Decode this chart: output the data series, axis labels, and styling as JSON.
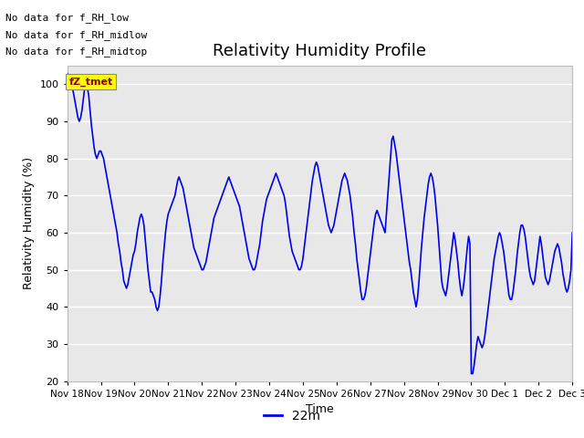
{
  "title": "Relativity Humidity Profile",
  "xlabel": "Time",
  "ylabel": "Relativity Humidity (%)",
  "ylim": [
    20,
    105
  ],
  "yticks": [
    20,
    30,
    40,
    50,
    60,
    70,
    80,
    90,
    100
  ],
  "plot_bg_color": "#e8e8e8",
  "line_color": "#0000ee",
  "legend_label": "22m",
  "no_data_texts": [
    "No data for f_RH_low",
    "No data for f_RH_midlow",
    "No data for f_RH_midtop"
  ],
  "tz_tmet_label": "fZ_tmet",
  "x_tick_labels": [
    "Nov 18",
    "Nov 19",
    "Nov 20",
    "Nov 21",
    "Nov 22",
    "Nov 23",
    "Nov 24",
    "Nov 25",
    "Nov 26",
    "Nov 27",
    "Nov 28",
    "Nov 29",
    "Nov 30",
    "Dec 1",
    "Dec 2",
    "Dec 3"
  ],
  "x_tick_positions": [
    0,
    1,
    2,
    3,
    4,
    5,
    6,
    7,
    8,
    9,
    10,
    11,
    12,
    13,
    14,
    15
  ],
  "data_x": [
    0.0,
    0.04,
    0.08,
    0.12,
    0.16,
    0.2,
    0.24,
    0.28,
    0.32,
    0.36,
    0.4,
    0.44,
    0.48,
    0.52,
    0.56,
    0.6,
    0.64,
    0.68,
    0.72,
    0.76,
    0.8,
    0.84,
    0.88,
    0.92,
    0.96,
    1.0,
    1.04,
    1.08,
    1.12,
    1.16,
    1.2,
    1.24,
    1.28,
    1.32,
    1.36,
    1.4,
    1.44,
    1.48,
    1.52,
    1.56,
    1.6,
    1.64,
    1.68,
    1.72,
    1.76,
    1.8,
    1.84,
    1.88,
    1.92,
    1.96,
    2.0,
    2.04,
    2.08,
    2.12,
    2.16,
    2.2,
    2.24,
    2.28,
    2.32,
    2.36,
    2.4,
    2.44,
    2.48,
    2.52,
    2.56,
    2.6,
    2.64,
    2.68,
    2.72,
    2.76,
    2.8,
    2.84,
    2.88,
    2.92,
    2.96,
    3.0,
    3.04,
    3.08,
    3.12,
    3.16,
    3.2,
    3.24,
    3.28,
    3.32,
    3.36,
    3.4,
    3.44,
    3.48,
    3.52,
    3.56,
    3.6,
    3.64,
    3.68,
    3.72,
    3.76,
    3.8,
    3.84,
    3.88,
    3.92,
    3.96,
    4.0,
    4.04,
    4.08,
    4.12,
    4.16,
    4.2,
    4.24,
    4.28,
    4.32,
    4.36,
    4.4,
    4.44,
    4.48,
    4.52,
    4.56,
    4.6,
    4.64,
    4.68,
    4.72,
    4.76,
    4.8,
    4.84,
    4.88,
    4.92,
    4.96,
    5.0,
    5.04,
    5.08,
    5.12,
    5.16,
    5.2,
    5.24,
    5.28,
    5.32,
    5.36,
    5.4,
    5.44,
    5.48,
    5.52,
    5.56,
    5.6,
    5.64,
    5.68,
    5.72,
    5.76,
    5.8,
    5.84,
    5.88,
    5.92,
    5.96,
    6.0,
    6.04,
    6.08,
    6.12,
    6.16,
    6.2,
    6.24,
    6.28,
    6.32,
    6.36,
    6.4,
    6.44,
    6.48,
    6.52,
    6.56,
    6.6,
    6.64,
    6.68,
    6.72,
    6.76,
    6.8,
    6.84,
    6.88,
    6.92,
    6.96,
    7.0,
    7.04,
    7.08,
    7.12,
    7.16,
    7.2,
    7.24,
    7.28,
    7.32,
    7.36,
    7.4,
    7.44,
    7.48,
    7.52,
    7.56,
    7.6,
    7.64,
    7.68,
    7.72,
    7.76,
    7.8,
    7.84,
    7.88,
    7.92,
    7.96,
    8.0,
    8.04,
    8.08,
    8.12,
    8.16,
    8.2,
    8.24,
    8.28,
    8.32,
    8.36,
    8.4,
    8.44,
    8.48,
    8.52,
    8.56,
    8.6,
    8.64,
    8.68,
    8.72,
    8.76,
    8.8,
    8.84,
    8.88,
    8.92,
    8.96,
    9.0,
    9.04,
    9.08,
    9.12,
    9.16,
    9.2,
    9.24,
    9.28,
    9.32,
    9.36,
    9.4,
    9.44,
    9.48,
    9.52,
    9.56,
    9.6,
    9.64,
    9.68,
    9.72,
    9.76,
    9.8,
    9.84,
    9.88,
    9.92,
    9.96,
    10.0,
    10.04,
    10.08,
    10.12,
    10.16,
    10.2,
    10.24,
    10.28,
    10.32,
    10.36,
    10.4,
    10.44,
    10.48,
    10.52,
    10.56,
    10.6,
    10.64,
    10.68,
    10.72,
    10.76,
    10.8,
    10.84,
    10.88,
    10.92,
    10.96,
    11.0,
    11.04,
    11.08,
    11.12,
    11.16,
    11.2,
    11.24,
    11.28,
    11.32,
    11.36,
    11.4,
    11.44,
    11.48,
    11.52,
    11.56,
    11.6,
    11.64,
    11.68,
    11.72,
    11.76,
    11.8,
    11.84,
    11.88,
    11.92,
    11.96,
    12.0,
    12.04,
    12.08,
    12.12,
    12.16,
    12.2,
    12.24,
    12.28,
    12.32,
    12.36,
    12.4,
    12.44,
    12.48,
    12.52,
    12.56,
    12.6,
    12.64,
    12.68,
    12.72,
    12.76,
    12.8,
    12.84,
    12.88,
    12.92,
    12.96,
    13.0,
    13.04,
    13.08,
    13.12,
    13.16,
    13.2,
    13.24,
    13.28,
    13.32,
    13.36,
    13.4,
    13.44,
    13.48,
    13.52,
    13.56,
    13.6,
    13.64,
    13.68,
    13.72,
    13.76,
    13.8,
    13.84,
    13.88,
    13.92,
    13.96,
    14.0,
    14.04,
    14.08,
    14.12,
    14.16,
    14.2,
    14.24,
    14.28,
    14.32,
    14.36,
    14.4,
    14.44,
    14.48,
    14.52,
    14.56,
    14.6,
    14.64,
    14.68,
    14.72,
    14.76,
    14.8,
    14.84,
    14.88,
    14.92,
    14.96,
    15.0
  ],
  "data_y": [
    103,
    102,
    101,
    100,
    99,
    97,
    95,
    93,
    91,
    90,
    91,
    93,
    96,
    99,
    100,
    99,
    97,
    93,
    89,
    86,
    83,
    81,
    80,
    81,
    82,
    82,
    81,
    80,
    78,
    76,
    74,
    72,
    70,
    68,
    66,
    64,
    62,
    60,
    57,
    55,
    52,
    50,
    47,
    46,
    45,
    46,
    48,
    50,
    52,
    54,
    55,
    57,
    60,
    62,
    64,
    65,
    64,
    62,
    58,
    54,
    50,
    47,
    44,
    44,
    43,
    42,
    40,
    39,
    40,
    43,
    47,
    52,
    56,
    60,
    63,
    65,
    66,
    67,
    68,
    69,
    70,
    72,
    74,
    75,
    74,
    73,
    72,
    70,
    68,
    66,
    64,
    62,
    60,
    58,
    56,
    55,
    54,
    53,
    52,
    51,
    50,
    50,
    51,
    52,
    54,
    56,
    58,
    60,
    62,
    64,
    65,
    66,
    67,
    68,
    69,
    70,
    71,
    72,
    73,
    74,
    75,
    74,
    73,
    72,
    71,
    70,
    69,
    68,
    67,
    65,
    63,
    61,
    59,
    57,
    55,
    53,
    52,
    51,
    50,
    50,
    51,
    53,
    55,
    57,
    60,
    63,
    65,
    67,
    69,
    70,
    71,
    72,
    73,
    74,
    75,
    76,
    75,
    74,
    73,
    72,
    71,
    70,
    68,
    65,
    62,
    59,
    57,
    55,
    54,
    53,
    52,
    51,
    50,
    50,
    51,
    53,
    56,
    59,
    62,
    65,
    68,
    71,
    74,
    76,
    78,
    79,
    78,
    76,
    74,
    72,
    70,
    68,
    66,
    64,
    62,
    61,
    60,
    61,
    62,
    64,
    66,
    68,
    70,
    72,
    74,
    75,
    76,
    75,
    74,
    72,
    70,
    67,
    64,
    60,
    57,
    53,
    50,
    47,
    44,
    42,
    42,
    43,
    45,
    48,
    51,
    54,
    57,
    60,
    63,
    65,
    66,
    65,
    64,
    63,
    62,
    61,
    60,
    65,
    70,
    75,
    80,
    85,
    86,
    84,
    82,
    79,
    76,
    73,
    70,
    67,
    64,
    61,
    58,
    55,
    52,
    50,
    47,
    44,
    42,
    40,
    42,
    46,
    51,
    56,
    60,
    64,
    67,
    70,
    73,
    75,
    76,
    75,
    73,
    70,
    66,
    62,
    57,
    52,
    47,
    45,
    44,
    43,
    45,
    48,
    51,
    54,
    57,
    60,
    58,
    55,
    52,
    48,
    45,
    43,
    45,
    48,
    52,
    56,
    59,
    57,
    22,
    22,
    24,
    27,
    30,
    32,
    31,
    30,
    29,
    30,
    32,
    35,
    38,
    41,
    44,
    47,
    50,
    53,
    55,
    57,
    59,
    60,
    59,
    57,
    55,
    52,
    49,
    46,
    43,
    42,
    42,
    44,
    47,
    50,
    54,
    57,
    60,
    62,
    62,
    61,
    59,
    56,
    53,
    50,
    48,
    47,
    46,
    47,
    50,
    53,
    56,
    59,
    57,
    54,
    51,
    48,
    47,
    46,
    47,
    49,
    51,
    53,
    55,
    56,
    57,
    56,
    54,
    52,
    49,
    47,
    45,
    44,
    45,
    47,
    50,
    60
  ]
}
